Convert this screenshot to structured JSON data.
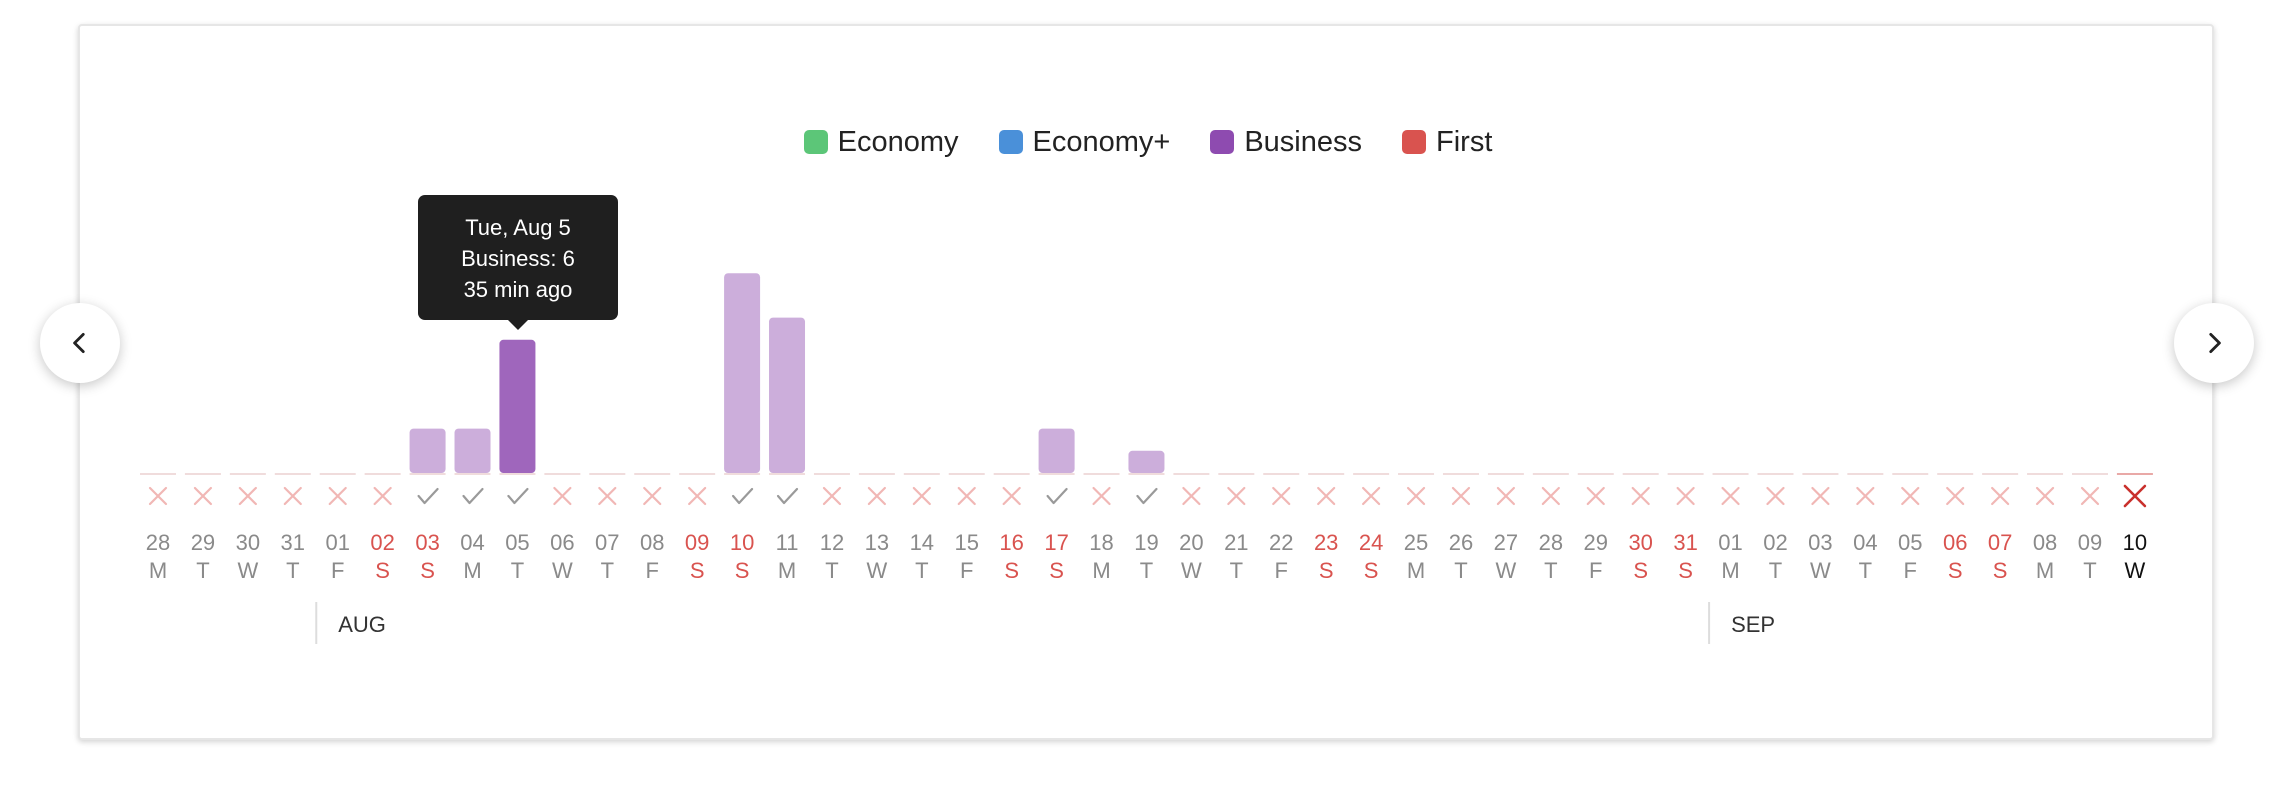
{
  "legend": [
    {
      "label": "Economy",
      "color": "#5cc678"
    },
    {
      "label": "Economy+",
      "color": "#4a90d9"
    },
    {
      "label": "Business",
      "color": "#8e4bb0"
    },
    {
      "label": "First",
      "color": "#d9534f"
    }
  ],
  "tooltip": {
    "date": "Tue, Aug 5",
    "value": "Business: 6",
    "time": "35 min ago"
  },
  "nav": {
    "prev_icon": "chevron-left-icon",
    "next_icon": "chevron-right-icon"
  },
  "chart_data": {
    "type": "bar",
    "series_name": "Business",
    "categories": [
      {
        "day": "28",
        "wd": "M",
        "weekend": false
      },
      {
        "day": "29",
        "wd": "T",
        "weekend": false
      },
      {
        "day": "30",
        "wd": "W",
        "weekend": false
      },
      {
        "day": "31",
        "wd": "T",
        "weekend": false
      },
      {
        "day": "01",
        "wd": "F",
        "weekend": false
      },
      {
        "day": "02",
        "wd": "S",
        "weekend": true
      },
      {
        "day": "03",
        "wd": "S",
        "weekend": true
      },
      {
        "day": "04",
        "wd": "M",
        "weekend": false
      },
      {
        "day": "05",
        "wd": "T",
        "weekend": false
      },
      {
        "day": "06",
        "wd": "W",
        "weekend": false
      },
      {
        "day": "07",
        "wd": "T",
        "weekend": false
      },
      {
        "day": "08",
        "wd": "F",
        "weekend": false
      },
      {
        "day": "09",
        "wd": "S",
        "weekend": true
      },
      {
        "day": "10",
        "wd": "S",
        "weekend": true
      },
      {
        "day": "11",
        "wd": "M",
        "weekend": false
      },
      {
        "day": "12",
        "wd": "T",
        "weekend": false
      },
      {
        "day": "13",
        "wd": "W",
        "weekend": false
      },
      {
        "day": "14",
        "wd": "T",
        "weekend": false
      },
      {
        "day": "15",
        "wd": "F",
        "weekend": false
      },
      {
        "day": "16",
        "wd": "S",
        "weekend": true
      },
      {
        "day": "17",
        "wd": "S",
        "weekend": true
      },
      {
        "day": "18",
        "wd": "M",
        "weekend": false
      },
      {
        "day": "19",
        "wd": "T",
        "weekend": false
      },
      {
        "day": "20",
        "wd": "W",
        "weekend": false
      },
      {
        "day": "21",
        "wd": "T",
        "weekend": false
      },
      {
        "day": "22",
        "wd": "F",
        "weekend": false
      },
      {
        "day": "23",
        "wd": "S",
        "weekend": true
      },
      {
        "day": "24",
        "wd": "S",
        "weekend": true
      },
      {
        "day": "25",
        "wd": "M",
        "weekend": false
      },
      {
        "day": "26",
        "wd": "T",
        "weekend": false
      },
      {
        "day": "27",
        "wd": "W",
        "weekend": false
      },
      {
        "day": "28",
        "wd": "T",
        "weekend": false
      },
      {
        "day": "29",
        "wd": "F",
        "weekend": false
      },
      {
        "day": "30",
        "wd": "S",
        "weekend": true
      },
      {
        "day": "31",
        "wd": "S",
        "weekend": true
      },
      {
        "day": "01",
        "wd": "M",
        "weekend": false
      },
      {
        "day": "02",
        "wd": "T",
        "weekend": false
      },
      {
        "day": "03",
        "wd": "W",
        "weekend": false
      },
      {
        "day": "04",
        "wd": "T",
        "weekend": false
      },
      {
        "day": "05",
        "wd": "F",
        "weekend": false
      },
      {
        "day": "06",
        "wd": "S",
        "weekend": true
      },
      {
        "day": "07",
        "wd": "S",
        "weekend": true
      },
      {
        "day": "08",
        "wd": "M",
        "weekend": false
      },
      {
        "day": "09",
        "wd": "T",
        "weekend": false
      },
      {
        "day": "10",
        "wd": "W",
        "weekend": false,
        "today": true
      }
    ],
    "values": [
      0,
      0,
      0,
      0,
      0,
      0,
      2,
      2,
      6,
      0,
      0,
      0,
      0,
      9,
      7,
      0,
      0,
      0,
      0,
      0,
      2,
      0,
      1,
      0,
      0,
      0,
      0,
      0,
      0,
      0,
      0,
      0,
      0,
      0,
      0,
      0,
      0,
      0,
      0,
      0,
      0,
      0,
      0,
      0,
      0
    ],
    "status": [
      "x",
      "x",
      "x",
      "x",
      "x",
      "x",
      "check",
      "check",
      "check",
      "x",
      "x",
      "x",
      "x",
      "check",
      "check",
      "x",
      "x",
      "x",
      "x",
      "x",
      "check",
      "x",
      "check",
      "x",
      "x",
      "x",
      "x",
      "x",
      "x",
      "x",
      "x",
      "x",
      "x",
      "x",
      "x",
      "x",
      "x",
      "x",
      "x",
      "x",
      "x",
      "x",
      "x",
      "x",
      "x"
    ],
    "highlight_index": 8,
    "month_labels": [
      {
        "label": "AUG",
        "start_index": 4
      },
      {
        "label": "SEP",
        "start_index": 35
      }
    ],
    "ylim": [
      0,
      10
    ]
  }
}
